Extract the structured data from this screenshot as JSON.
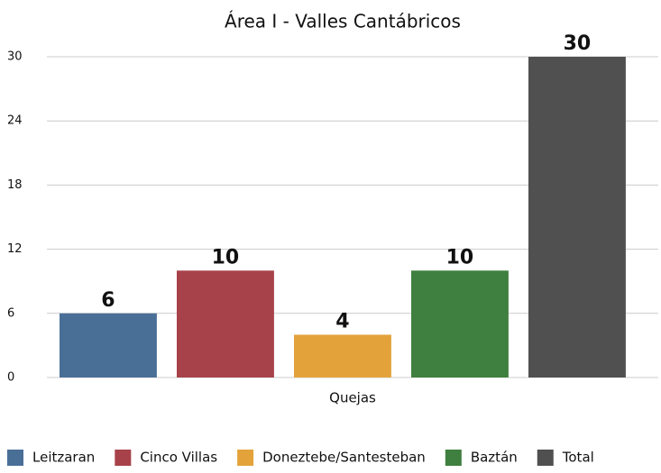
{
  "chart_data": {
    "type": "bar",
    "title": "Área I - Valles Cantábricos",
    "categories": [
      "Quejas"
    ],
    "series": [
      {
        "name": "Leitzaran",
        "color": "#4a6f97",
        "values": [
          6
        ]
      },
      {
        "name": "Cinco Villas",
        "color": "#a8424a",
        "values": [
          10
        ]
      },
      {
        "name": "Doneztebe/Santesteban",
        "color": "#e3a33a",
        "values": [
          4
        ]
      },
      {
        "name": "Baztán",
        "color": "#3f7f3f",
        "values": [
          10
        ]
      },
      {
        "name": "Total",
        "color": "#505050",
        "values": [
          30
        ]
      }
    ],
    "ylim": [
      0,
      30
    ],
    "yticks": [
      0,
      6,
      12,
      18,
      24,
      30
    ],
    "grid": true,
    "legend": "bottom"
  }
}
